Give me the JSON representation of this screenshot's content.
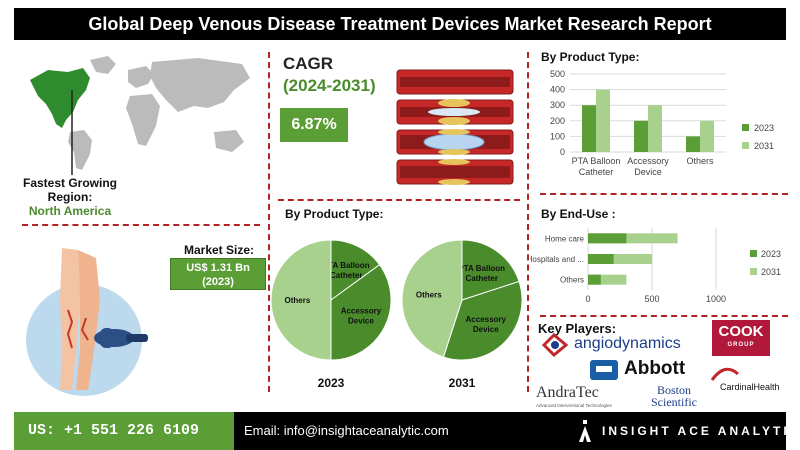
{
  "title": "Global Deep Venous Disease Treatment Devices Market Research Report",
  "region": {
    "label": "Fastest Growing Region:",
    "value": "North America"
  },
  "market_size": {
    "label": "Market Size:",
    "value": "US$ 1.31 Bn",
    "year": "(2023)"
  },
  "cagr": {
    "label": "CAGR",
    "period": "(2024-2031)",
    "value": "6.87%"
  },
  "colors": {
    "dark_green": "#5a9e35",
    "light_green": "#a9d18e",
    "pie_dark": "#4a8b2c",
    "pie_light": "#a9d18e",
    "accent_red": "#b22222"
  },
  "pies_title": "By Product Type:",
  "pie_years": [
    "2023",
    "2031"
  ],
  "bar_title": "By Product Type:",
  "hbar_title": "By End-Use :",
  "key_players": {
    "title": "Key Players:",
    "names": [
      "angiodynamics",
      "COOK",
      "GROUP",
      "Abbott",
      "CardinalHealth",
      "AndraTec",
      "Advanced Interventional Technologies",
      "Boston",
      "Scientific"
    ]
  },
  "footer": {
    "phone": "US: +1 551 226 6109",
    "email": "Email: info@insightaceanalytic.com",
    "brand": "INSIGHT ACE ANALYTIC"
  },
  "chart_data": [
    {
      "type": "bar",
      "title": "By Product Type:",
      "categories": [
        "PTA Balloon Catheter",
        "Accessory Device",
        "Others"
      ],
      "series": [
        {
          "name": "2023",
          "values": [
            300,
            200,
            100
          ]
        },
        {
          "name": "2031",
          "values": [
            400,
            300,
            200
          ]
        }
      ],
      "ylim": [
        0,
        500
      ],
      "yticks": [
        0,
        100,
        200,
        300,
        400,
        500
      ],
      "grid": true,
      "legend": "right"
    },
    {
      "type": "bar",
      "orientation": "horizontal",
      "title": "By End-Use :",
      "categories": [
        "Home care",
        "Hospitals and ...",
        "Others"
      ],
      "series": [
        {
          "name": "2023",
          "values": [
            300,
            200,
            100
          ]
        },
        {
          "name": "2031",
          "values": [
            400,
            300,
            200
          ]
        }
      ],
      "xlim": [
        0,
        1000
      ],
      "xticks": [
        0,
        500,
        1000
      ],
      "grid": true,
      "legend": "right"
    },
    {
      "type": "pie",
      "title": "2023",
      "labels": [
        "PTA Balloon Catheter",
        "Accessory Device",
        "Others"
      ],
      "values": [
        15,
        35,
        50
      ]
    },
    {
      "type": "pie",
      "title": "2031",
      "labels": [
        "PTA Balloon Catheter",
        "Accessory Device",
        "Others"
      ],
      "values": [
        20,
        35,
        45
      ]
    }
  ]
}
